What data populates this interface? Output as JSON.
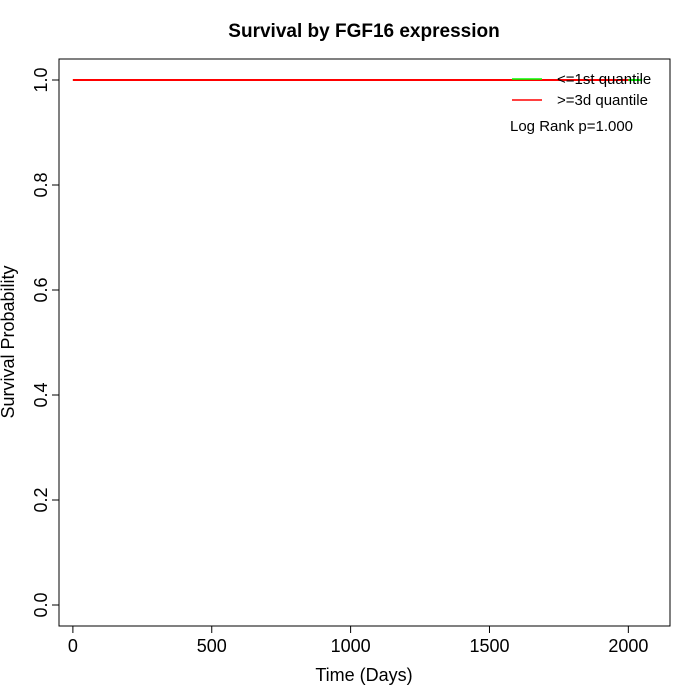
{
  "chart_data": {
    "type": "line",
    "title": "Survival by FGF16 expression",
    "xlabel": "Time (Days)",
    "ylabel": "Survival Probability",
    "xlim": [
      -50,
      2150
    ],
    "ylim": [
      -0.04,
      1.04
    ],
    "xticks": [
      0,
      500,
      1000,
      1500,
      2000
    ],
    "yticks": [
      0.0,
      0.2,
      0.4,
      0.6,
      0.8,
      1.0
    ],
    "xtick_labels": [
      "0",
      "500",
      "1000",
      "1500",
      "2000"
    ],
    "ytick_labels": [
      "0.0",
      "0.2",
      "0.4",
      "0.6",
      "0.8",
      "1.0"
    ],
    "grid": false,
    "legend_position": "top-right",
    "series": [
      {
        "name": "<=1st quantile",
        "color": "#00ff00",
        "x": [
          0,
          2050
        ],
        "y": [
          1.0,
          1.0
        ]
      },
      {
        "name": ">=3d quantile",
        "color": "#ff0000",
        "x": [
          0,
          2000
        ],
        "y": [
          1.0,
          1.0
        ]
      }
    ],
    "annotation": "Log Rank p=1.000"
  }
}
